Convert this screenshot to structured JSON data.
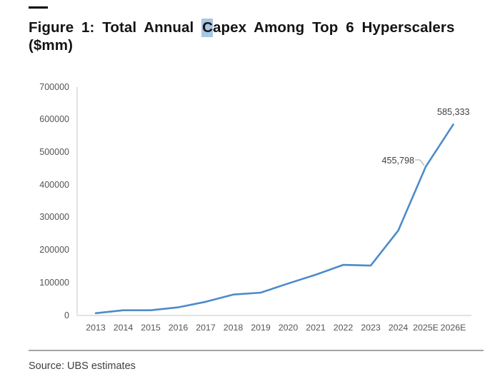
{
  "page": {
    "title_prefix": "Figure 1: Total Annual ",
    "title_highlight": "C",
    "title_suffix": "apex Among Top 6 Hyperscalers",
    "title_line2": "($mm)",
    "source": "Source: UBS estimates",
    "highlight_color": "#a9c6e3"
  },
  "chart_data": {
    "type": "line",
    "title": "Figure 1: Total Annual Capex Among Top 6 Hyperscalers ($mm)",
    "categories": [
      "2013",
      "2014",
      "2015",
      "2016",
      "2017",
      "2018",
      "2019",
      "2020",
      "2021",
      "2022",
      "2023",
      "2024",
      "2025E",
      "2026E"
    ],
    "series": [
      {
        "name": "Total annual capex, top 6 hyperscalers ($mm)",
        "values": [
          7000,
          16000,
          16000,
          25000,
          42000,
          64000,
          70000,
          98000,
          125000,
          155000,
          153000,
          260000,
          455798,
          585333
        ]
      }
    ],
    "y_tick_labels_top_to_bottom": [
      "700000",
      "600000",
      "500000",
      "400000",
      "300000",
      "200000",
      "100000",
      "0"
    ],
    "ylim": [
      0,
      700000
    ],
    "xlabel": "",
    "ylabel": "",
    "grid": "off",
    "legend": "none",
    "line_color": "#4d8bc9",
    "axis_line_color": "#d9d9d9",
    "data_labels": [
      {
        "category": "2025E",
        "text": "455,798",
        "leader_line": true
      },
      {
        "category": "2026E",
        "text": "585,333",
        "leader_line": false
      }
    ]
  }
}
